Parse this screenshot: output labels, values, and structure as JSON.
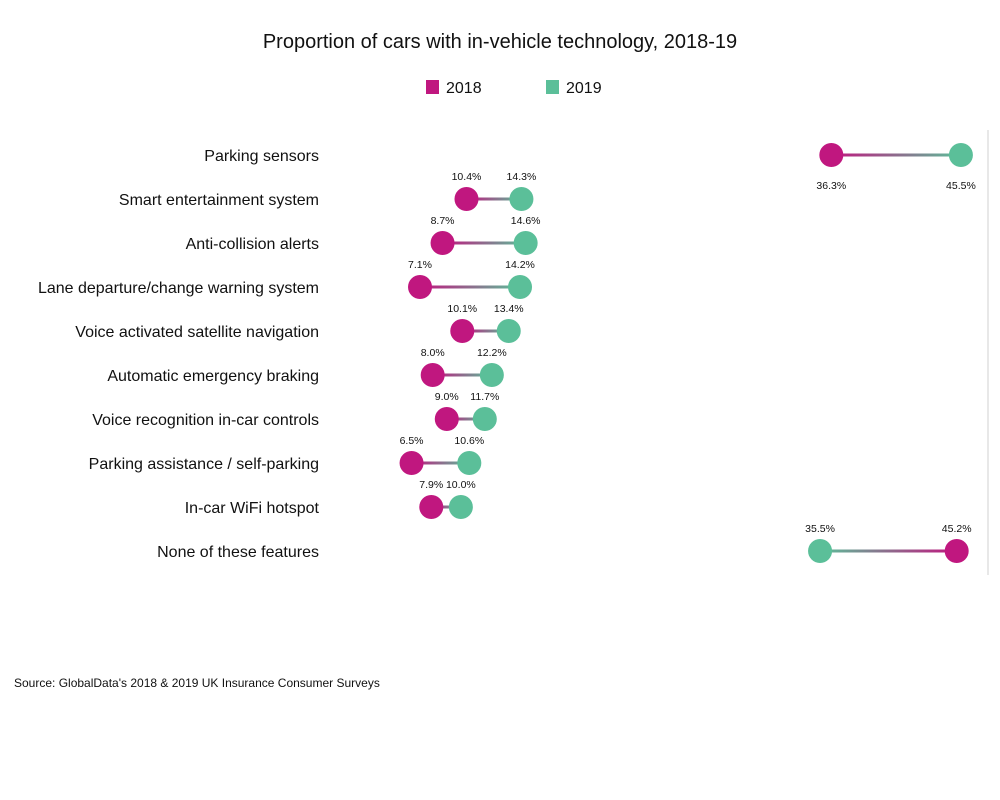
{
  "chart_data": {
    "type": "dumbbell",
    "title": "Proportion of cars with in-vehicle technology, 2018-19",
    "source": "Source: GlobalData's 2018 & 2019 UK Insurance Consumer Surveys",
    "legend": [
      {
        "name": "2018",
        "color": "#c0177f"
      },
      {
        "name": "2019",
        "color": "#5bbf99"
      }
    ],
    "categories": [
      "Parking sensors",
      "Smart entertainment system",
      "Anti-collision alerts",
      "Lane departure/change warning system",
      "Voice activated satellite navigation",
      "Automatic emergency braking",
      "Voice recognition in-car controls",
      "Parking assistance / self-parking",
      "In-car WiFi hotspot",
      "None of these features"
    ],
    "series": [
      {
        "name": "2018",
        "values": [
          36.3,
          10.4,
          8.7,
          7.1,
          10.1,
          8.0,
          9.0,
          6.5,
          7.9,
          45.2
        ]
      },
      {
        "name": "2019",
        "values": [
          45.5,
          14.3,
          14.6,
          14.2,
          13.4,
          12.2,
          11.7,
          10.6,
          10.0,
          35.5
        ]
      }
    ],
    "labels": {
      "2018": [
        "36.3%",
        "10.4%",
        "8.7%",
        "7.1%",
        "10.1%",
        "8.0%",
        "9.0%",
        "6.5%",
        "7.9%",
        "45.2%"
      ],
      "2019": [
        "45.5%",
        "14.3%",
        "14.6%",
        "14.2%",
        "13.4%",
        "12.2%",
        "11.7%",
        "10.6%",
        "10.0%",
        "35.5%"
      ]
    },
    "label_placement": [
      "below",
      "above",
      "above",
      "above",
      "above",
      "above",
      "above",
      "above",
      "above",
      "above"
    ],
    "xlim": [
      0,
      46.5
    ]
  }
}
